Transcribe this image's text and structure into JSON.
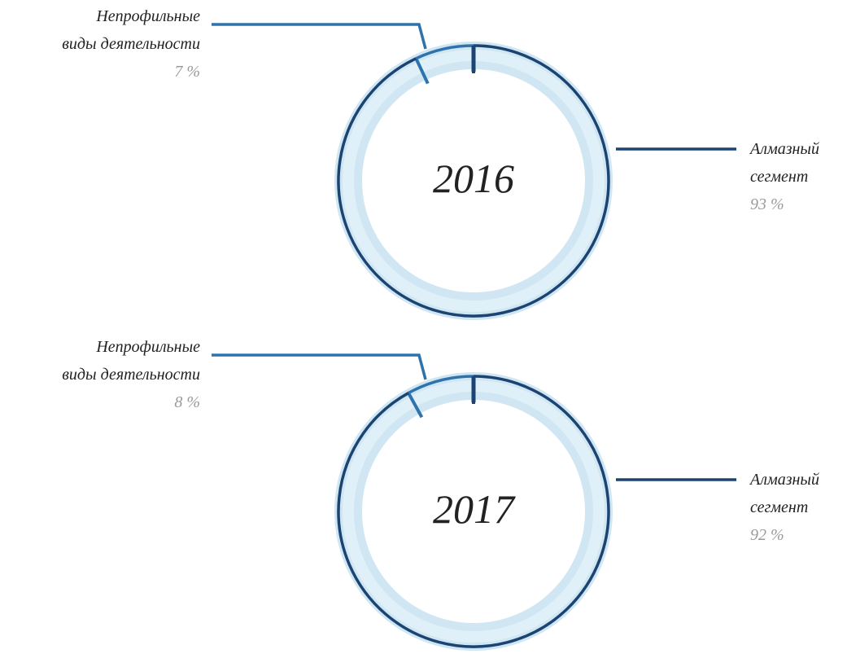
{
  "chart_data": [
    {
      "type": "pie",
      "title": "2016",
      "categories": [
        "Непрофильные\nвиды деятельности",
        "Алмазный\nсегмент"
      ],
      "values": [
        7,
        93
      ],
      "value_labels": [
        "7 %",
        "93 %"
      ],
      "colors": [
        "#2f73ad",
        "#1b4472"
      ]
    },
    {
      "type": "pie",
      "title": "2017",
      "categories": [
        "Непрофильные\nвиды деятельности",
        "Алмазный\nсегмент"
      ],
      "values": [
        8,
        92
      ],
      "value_labels": [
        "8 %",
        "92 %"
      ],
      "colors": [
        "#2f73ad",
        "#1b4472"
      ]
    }
  ]
}
